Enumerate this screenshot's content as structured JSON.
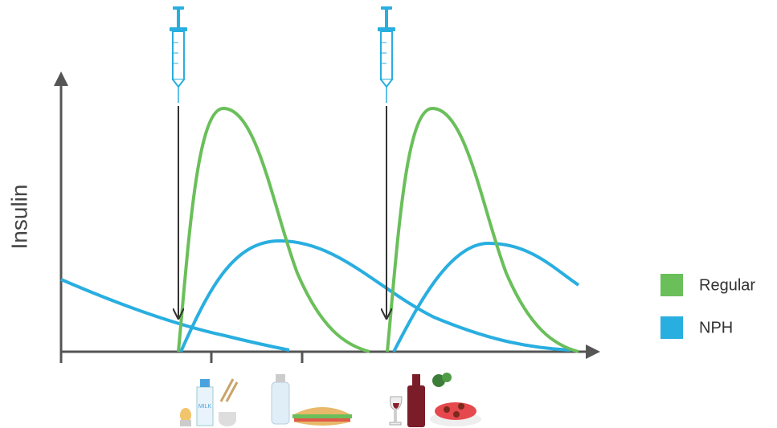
{
  "y_axis_label": "Insulin",
  "legend": [
    {
      "label": "Regular",
      "color": "#6abf5a"
    },
    {
      "label": "NPH",
      "color": "#29aee0"
    }
  ],
  "icons": {
    "milk_label": "MILK"
  }
}
